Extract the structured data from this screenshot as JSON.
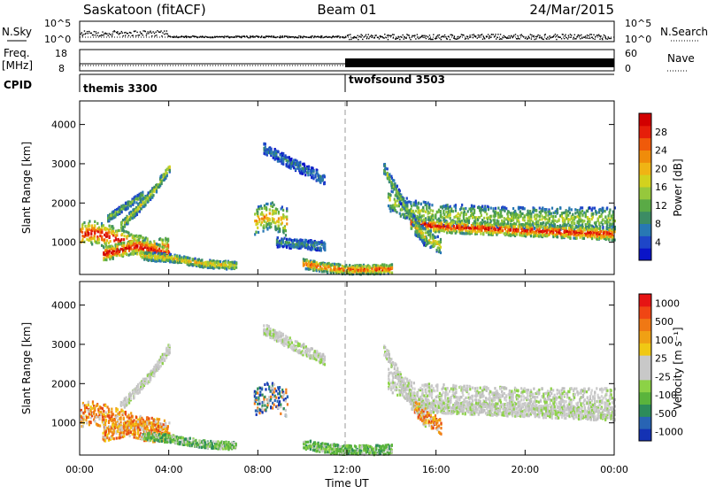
{
  "header": {
    "station": "Saskatoon (fitACF)",
    "beam": "Beam 01",
    "date": "24/Mar/2015"
  },
  "top_panels": {
    "nsky": {
      "label": "N.Sky",
      "left_ticks": [
        "10^5",
        "10^0"
      ],
      "right_ticks": [
        "10^5",
        "10^0"
      ],
      "right_label": "N.Search"
    },
    "freq": {
      "label_line1": "Freq.",
      "label_line2": "[MHz]",
      "left_ticks": [
        "18",
        "8"
      ],
      "right_ticks": [
        "60",
        "0"
      ],
      "right_label": "Nave"
    },
    "cpid": {
      "label": "CPID",
      "segments": [
        {
          "name": "themis 3300",
          "start_h": 0,
          "end_h": 12
        },
        {
          "name": "twofsound 3503",
          "start_h": 12,
          "end_h": 24
        }
      ]
    }
  },
  "chart_data": [
    {
      "type": "heatmap",
      "panel": "power",
      "ylabel": "Slant Range [km]",
      "xlim": [
        0,
        24
      ],
      "ylim": [
        180,
        4600
      ],
      "yticks": [
        "1000",
        "2000",
        "3000",
        "4000"
      ],
      "colorbar": {
        "label": "Power [dB]",
        "ticks": [
          "4",
          "8",
          "12",
          "16",
          "20",
          "24",
          "28"
        ],
        "colors": [
          "#0a14c8",
          "#1e46c8",
          "#2878b4",
          "#3c8c64",
          "#5aaa46",
          "#96c83c",
          "#d2d21e",
          "#f0b414",
          "#f08c0a",
          "#f05a0a",
          "#e61e0a",
          "#d20000"
        ]
      },
      "echo_bands": [
        {
          "t": [
            0.0,
            0.6,
            1.2,
            2.0,
            2.8,
            3.5,
            4.0
          ],
          "r": [
            1200,
            1250,
            1150,
            1000,
            850,
            800,
            800
          ],
          "w": 300,
          "level": 0.95
        },
        {
          "t": [
            1.0,
            1.8,
            2.5,
            3.2,
            3.9
          ],
          "r": [
            700,
            800,
            900,
            820,
            700
          ],
          "w": 180,
          "level": 1.0
        },
        {
          "t": [
            1.8,
            2.5,
            3.3,
            4.0
          ],
          "r": [
            1400,
            1800,
            2300,
            2900
          ],
          "w": 120,
          "level": 0.55
        },
        {
          "t": [
            1.2,
            2.0,
            2.8
          ],
          "r": [
            1600,
            1900,
            2200
          ],
          "w": 90,
          "level": 0.45
        },
        {
          "t": [
            2.8,
            4.0,
            5.5,
            7.0
          ],
          "r": [
            650,
            600,
            450,
            400
          ],
          "w": 100,
          "level": 0.65
        },
        {
          "t": [
            7.8,
            8.5,
            9.3
          ],
          "r": [
            1500,
            1700,
            1500
          ],
          "w": 350,
          "level": 0.7
        },
        {
          "t": [
            10.0,
            11.0,
            12.0,
            13.0,
            14.0
          ],
          "r": [
            450,
            350,
            300,
            300,
            320
          ],
          "w": 120,
          "level": 0.85
        },
        {
          "t": [
            8.2,
            9.5,
            11.0
          ],
          "r": [
            3400,
            3000,
            2600
          ],
          "w": 140,
          "level": 0.25
        },
        {
          "t": [
            8.8,
            9.8,
            11.0
          ],
          "r": [
            1000,
            950,
            900
          ],
          "w": 120,
          "level": 0.3
        },
        {
          "t": [
            13.8,
            14.8,
            16.0,
            18.0,
            20.0,
            22.0,
            24.0
          ],
          "r": [
            2100,
            1800,
            1700,
            1650,
            1600,
            1600,
            1600
          ],
          "w": 280,
          "level": 0.5
        },
        {
          "t": [
            14.8,
            16.0,
            18.0,
            20.0,
            22.0,
            24.0
          ],
          "r": [
            1500,
            1400,
            1350,
            1300,
            1250,
            1200
          ],
          "w": 150,
          "level": 0.95
        },
        {
          "t": [
            13.6,
            14.2,
            14.8,
            15.5
          ],
          "r": [
            2900,
            2300,
            1700,
            1000
          ],
          "w": 150,
          "level": 0.45
        },
        {
          "t": [
            15.0,
            15.6,
            16.2
          ],
          "r": [
            1400,
            1100,
            900
          ],
          "w": 200,
          "level": 0.6
        }
      ]
    },
    {
      "type": "heatmap",
      "panel": "velocity",
      "xlabel": "Time UT",
      "ylabel": "Slant Range [km]",
      "xlim": [
        0,
        24
      ],
      "ylim": [
        180,
        4600
      ],
      "xticks": [
        "00:00",
        "04:00",
        "08:00",
        "12:00",
        "16:00",
        "20:00",
        "00:00"
      ],
      "yticks": [
        "1000",
        "2000",
        "3000",
        "4000"
      ],
      "colorbar": {
        "label": "Velocity [m s⁻¹]",
        "ticks": [
          "1000",
          "500",
          "100",
          "25",
          "-25",
          "-100",
          "-500",
          "-1000"
        ],
        "colors": [
          "#1432b4",
          "#2864b4",
          "#2d8c5a",
          "#5ab43c",
          "#8cd246",
          "#c8c8c8",
          "#c8c8c8",
          "#f0c814",
          "#f0a014",
          "#f07814",
          "#f04614",
          "#e61414"
        ]
      },
      "echo_bands": [
        {
          "t": [
            0.0,
            0.6,
            1.2,
            2.0,
            2.8,
            3.5,
            4.0
          ],
          "r": [
            1200,
            1250,
            1150,
            1000,
            850,
            800,
            800
          ],
          "w": 300,
          "kind": "orange"
        },
        {
          "t": [
            1.0,
            1.8,
            2.5,
            3.2,
            3.9
          ],
          "r": [
            700,
            800,
            900,
            820,
            700
          ],
          "w": 180,
          "kind": "orange"
        },
        {
          "t": [
            1.8,
            2.5,
            3.3,
            4.0
          ],
          "r": [
            1400,
            1800,
            2300,
            2900
          ],
          "w": 120,
          "kind": "gray"
        },
        {
          "t": [
            2.8,
            4.0,
            5.5,
            7.0
          ],
          "r": [
            650,
            600,
            450,
            400
          ],
          "w": 100,
          "kind": "green"
        },
        {
          "t": [
            7.8,
            8.5,
            9.3
          ],
          "r": [
            1500,
            1700,
            1500
          ],
          "w": 350,
          "kind": "blue"
        },
        {
          "t": [
            10.0,
            11.0,
            12.0,
            13.0,
            14.0
          ],
          "r": [
            450,
            350,
            300,
            300,
            320
          ],
          "w": 120,
          "kind": "green"
        },
        {
          "t": [
            8.2,
            9.5,
            11.0
          ],
          "r": [
            3400,
            3000,
            2600
          ],
          "w": 140,
          "kind": "gray"
        },
        {
          "t": [
            13.8,
            14.8,
            16.0,
            18.0,
            20.0,
            22.0,
            24.0
          ],
          "r": [
            2100,
            1800,
            1700,
            1650,
            1600,
            1600,
            1600
          ],
          "w": 280,
          "kind": "gray"
        },
        {
          "t": [
            14.8,
            16.0,
            18.0,
            20.0,
            22.0,
            24.0
          ],
          "r": [
            1500,
            1400,
            1350,
            1300,
            1250,
            1200
          ],
          "w": 150,
          "kind": "gray"
        },
        {
          "t": [
            13.6,
            14.2,
            14.8,
            15.5
          ],
          "r": [
            2900,
            2300,
            1700,
            1000
          ],
          "w": 150,
          "kind": "gray"
        },
        {
          "t": [
            15.0,
            15.6,
            16.2
          ],
          "r": [
            1400,
            1100,
            900
          ],
          "w": 200,
          "kind": "orange"
        }
      ]
    }
  ]
}
